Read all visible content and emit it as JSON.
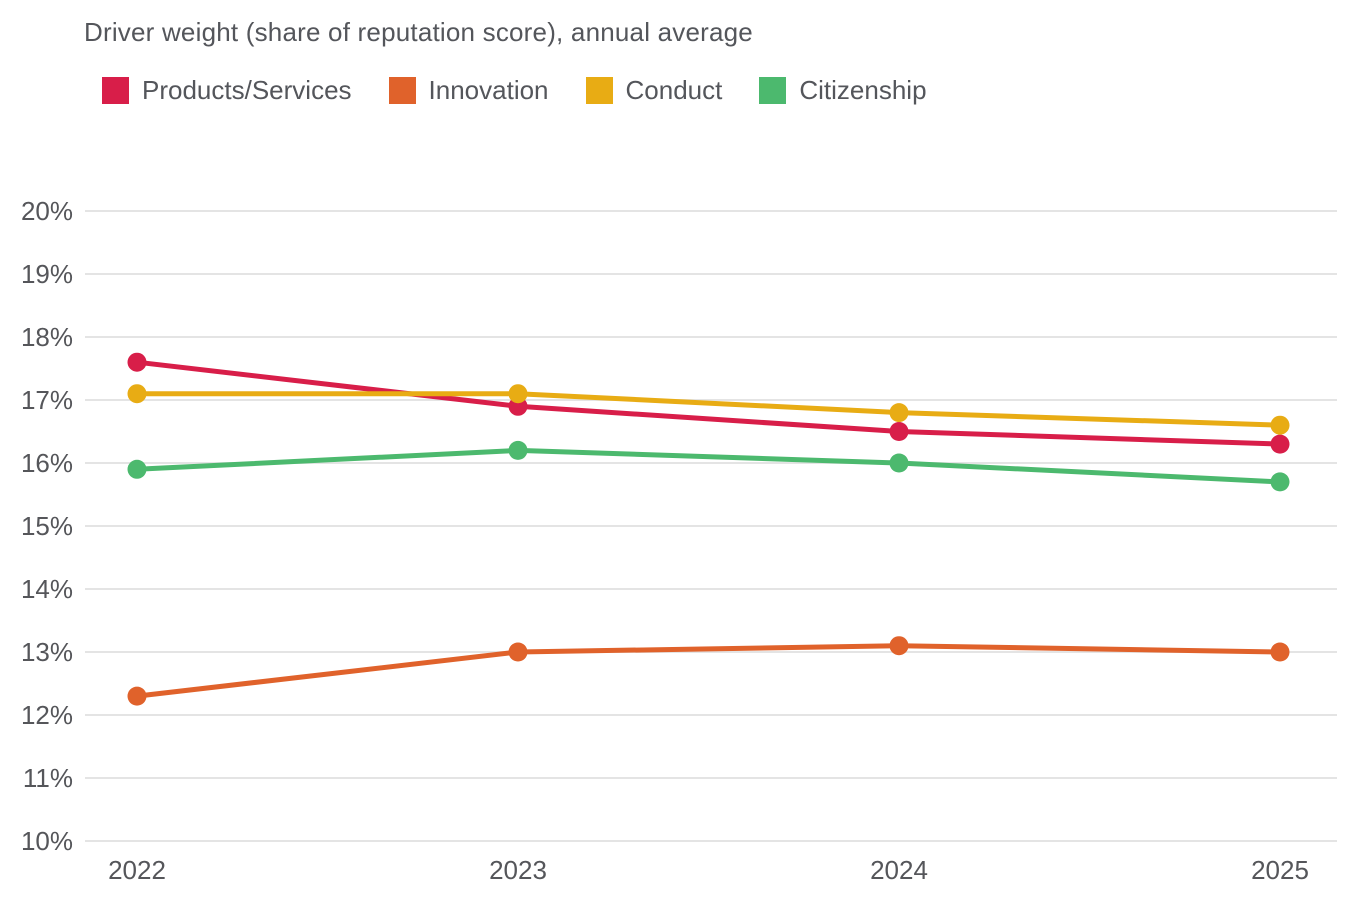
{
  "chart_data": {
    "type": "line",
    "title": "Driver weight (share of reputation score), annual average",
    "x": [
      "2022",
      "2023",
      "2024",
      "2025"
    ],
    "xlabel": "",
    "ylabel": "Driver weight (share of reputation score)",
    "ytick_suffix": "%",
    "ylim": [
      10,
      20
    ],
    "ytick_step": 1,
    "grid": "horizontal",
    "legend_position": "top-left",
    "marker": "circle",
    "background": "#ffffff",
    "gridline_color": "#E4E4E4",
    "text_color": "#54565B",
    "series": [
      {
        "name": "Products/Services",
        "color": "#D81E49",
        "values": [
          17.6,
          16.9,
          16.5,
          16.3
        ]
      },
      {
        "name": "Innovation",
        "color": "#E0622B",
        "values": [
          12.3,
          13.0,
          13.1,
          13.0
        ]
      },
      {
        "name": "Conduct",
        "color": "#E8AC14",
        "values": [
          17.1,
          17.1,
          16.8,
          16.6
        ]
      },
      {
        "name": "Citizenship",
        "color": "#4CB96E",
        "values": [
          15.9,
          16.2,
          16.0,
          15.7
        ]
      }
    ]
  }
}
